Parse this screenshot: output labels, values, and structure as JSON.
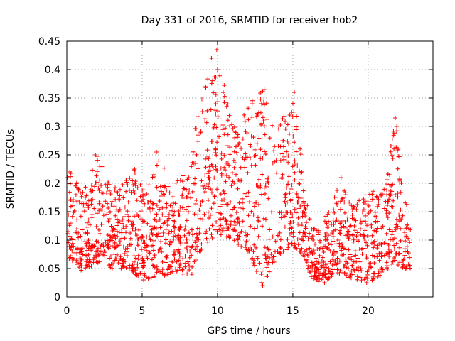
{
  "chart_data": {
    "type": "scatter",
    "title": "Day 331 of 2016, SRMTID for receiver hob2",
    "xlabel": "GPS time / hours",
    "ylabel": "SRMTID / TECUs",
    "xlim": [
      0,
      24.3
    ],
    "ylim": [
      0,
      0.45
    ],
    "x_ticks": [
      0,
      5,
      10,
      15,
      20
    ],
    "x_tick_labels": [
      "0",
      "5",
      "10",
      "15",
      "20"
    ],
    "y_ticks": [
      0,
      0.05,
      0.1,
      0.15,
      0.2,
      0.25,
      0.3,
      0.35,
      0.4,
      0.45
    ],
    "y_tick_labels": [
      "0",
      "0.05",
      "0.1",
      "0.15",
      "0.2",
      "0.25",
      "0.3",
      "0.35",
      "0.4",
      "0.45"
    ],
    "grid": true,
    "marker": "+",
    "series": [
      {
        "name": "SRMTID",
        "color": "#ff0000",
        "x_range": [
          0.0,
          22.8
        ],
        "envelope": [
          {
            "t": 0.0,
            "lo": 0.07,
            "hi": 0.22
          },
          {
            "t": 0.5,
            "lo": 0.06,
            "hi": 0.22
          },
          {
            "t": 1.0,
            "lo": 0.045,
            "hi": 0.18
          },
          {
            "t": 2.0,
            "lo": 0.06,
            "hi": 0.25
          },
          {
            "t": 3.0,
            "lo": 0.05,
            "hi": 0.19
          },
          {
            "t": 4.0,
            "lo": 0.05,
            "hi": 0.21
          },
          {
            "t": 4.5,
            "lo": 0.04,
            "hi": 0.225
          },
          {
            "t": 5.0,
            "lo": 0.03,
            "hi": 0.19
          },
          {
            "t": 6.0,
            "lo": 0.035,
            "hi": 0.255
          },
          {
            "t": 7.0,
            "lo": 0.04,
            "hi": 0.2
          },
          {
            "t": 8.0,
            "lo": 0.04,
            "hi": 0.22
          },
          {
            "t": 8.5,
            "lo": 0.06,
            "hi": 0.3
          },
          {
            "t": 9.0,
            "lo": 0.08,
            "hi": 0.37
          },
          {
            "t": 9.5,
            "lo": 0.1,
            "hi": 0.41
          },
          {
            "t": 10.0,
            "lo": 0.11,
            "hi": 0.435
          },
          {
            "t": 11.0,
            "lo": 0.1,
            "hi": 0.3
          },
          {
            "t": 12.0,
            "lo": 0.08,
            "hi": 0.34
          },
          {
            "t": 13.0,
            "lo": 0.02,
            "hi": 0.365
          },
          {
            "t": 14.0,
            "lo": 0.07,
            "hi": 0.3
          },
          {
            "t": 15.0,
            "lo": 0.09,
            "hi": 0.36
          },
          {
            "t": 15.8,
            "lo": 0.07,
            "hi": 0.23
          },
          {
            "t": 16.2,
            "lo": 0.03,
            "hi": 0.12
          },
          {
            "t": 17.0,
            "lo": 0.025,
            "hi": 0.13
          },
          {
            "t": 18.0,
            "lo": 0.04,
            "hi": 0.21
          },
          {
            "t": 19.0,
            "lo": 0.03,
            "hi": 0.16
          },
          {
            "t": 20.0,
            "lo": 0.025,
            "hi": 0.185
          },
          {
            "t": 21.0,
            "lo": 0.04,
            "hi": 0.19
          },
          {
            "t": 21.8,
            "lo": 0.06,
            "hi": 0.315
          },
          {
            "t": 22.3,
            "lo": 0.05,
            "hi": 0.2
          },
          {
            "t": 22.8,
            "lo": 0.05,
            "hi": 0.13
          }
        ],
        "sample_points": [
          [
            0.05,
            0.21
          ],
          [
            0.2,
            0.22
          ],
          [
            1.9,
            0.25
          ],
          [
            5.95,
            0.255
          ],
          [
            9.6,
            0.42
          ],
          [
            9.95,
            0.435
          ],
          [
            10.0,
            0.4
          ],
          [
            9.2,
            0.37
          ],
          [
            13.1,
            0.365
          ],
          [
            15.1,
            0.36
          ],
          [
            14.8,
            0.32
          ],
          [
            12.3,
            0.34
          ],
          [
            21.8,
            0.315
          ],
          [
            21.9,
            0.3
          ],
          [
            13.0,
            0.02
          ],
          [
            17.1,
            0.025
          ],
          [
            19.9,
            0.025
          ],
          [
            5.1,
            0.03
          ],
          [
            8.3,
            0.04
          ],
          [
            18.2,
            0.21
          ],
          [
            22.2,
            0.2
          ],
          [
            4.5,
            0.225
          ],
          [
            11.1,
            0.2
          ],
          [
            15.6,
            0.22
          ]
        ]
      }
    ]
  }
}
